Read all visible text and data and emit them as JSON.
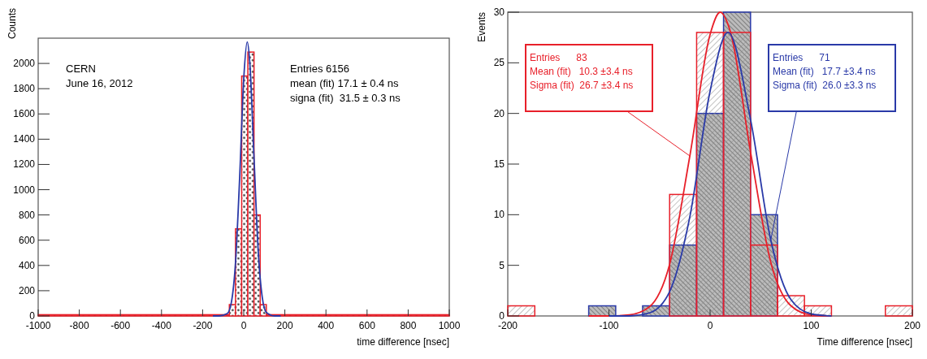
{
  "chart_data": [
    {
      "type": "histogram",
      "xlabel": "time difference [nsec]",
      "ylabel": "Counts",
      "bins": [
        -1000,
        -70,
        -40,
        -10,
        20,
        50,
        80,
        110,
        1000
      ],
      "series": [
        {
          "color": "#e8202a",
          "values": [
            10,
            90,
            690,
            1900,
            2090,
            800,
            90,
            10
          ]
        },
        {
          "type": "line",
          "color": "#2a3aa8",
          "x": [
            -150,
            -120,
            -80,
            -60,
            -40,
            -20,
            0,
            17,
            30,
            50,
            70,
            90,
            110,
            150,
            180
          ],
          "values": [
            0,
            0,
            19,
            109,
            422,
            1088,
            1876,
            2170,
            1993,
            1254,
            527,
            148,
            28,
            0,
            0
          ]
        }
      ],
      "xlim": [
        -1000,
        1000
      ],
      "xticks": [
        -1000,
        -800,
        -600,
        -400,
        -200,
        0,
        200,
        400,
        600,
        800,
        1000
      ],
      "ylim": [
        0,
        2200
      ],
      "yticks": [
        0,
        200,
        400,
        600,
        800,
        1000,
        1200,
        1400,
        1600,
        1800,
        2000
      ],
      "annotations": [
        "CERN\nJune 16, 2012",
        "Entries 6156\n\nmean (fit) 17.1 ± 0.4 ns\nsigna (fit)  31.5 ± 0.3 ns"
      ]
    },
    {
      "type": "histogram",
      "xlabel": "Time difference [nsec]",
      "ylabel": "Events",
      "bins": [
        -200,
        -173.3,
        -146.7,
        -120,
        -93.3,
        -66.7,
        -40,
        -13.3,
        13.3,
        40,
        66.7,
        93.3,
        120,
        146.7,
        173.3,
        200
      ],
      "series": [
        {
          "color": "#e8202a",
          "values": [
            1,
            0,
            0,
            0,
            0,
            0,
            12,
            28,
            28,
            7,
            2,
            1,
            0,
            0,
            1
          ]
        },
        {
          "color": "#2a3aa8",
          "values": [
            0,
            0,
            0,
            1,
            0,
            1,
            7,
            20,
            30,
            10,
            0,
            0,
            0,
            0,
            0
          ]
        },
        {
          "type": "line",
          "color": "#e8202a",
          "x": [
            -120,
            -100,
            -80,
            -60,
            -40,
            -20,
            0,
            10,
            20,
            40,
            60,
            80,
            100,
            120
          ],
          "values": [
            0,
            0,
            0.1,
            0.9,
            5.1,
            15.8,
            27.8,
            30,
            28.1,
            16.2,
            5.3,
            1,
            0.1,
            0
          ]
        },
        {
          "type": "line",
          "color": "#2a3aa8",
          "x": [
            -100,
            -80,
            -60,
            -40,
            -20,
            0,
            17.7,
            40,
            60,
            80,
            100,
            120
          ],
          "values": [
            0,
            0,
            0.3,
            2.4,
            9.8,
            22.2,
            28,
            19.4,
            7.5,
            1.6,
            0.2,
            0
          ]
        }
      ],
      "xlim": [
        -200,
        200
      ],
      "xticks": [
        -200,
        -100,
        0,
        100,
        200
      ],
      "ylim": [
        0,
        30
      ],
      "yticks": [
        0,
        5,
        10,
        15,
        20,
        25,
        30
      ],
      "annotations": [
        "Entries      83\n\nMean (fit)   10.3 ±3.4 ns\nSigma (fit)  26.7 ±3.4 ns",
        "Entries      71\n\nMean (fit)   17.7 ±3.4 ns\nSigma (fit)  26.0 ±3.3 ns"
      ]
    }
  ]
}
